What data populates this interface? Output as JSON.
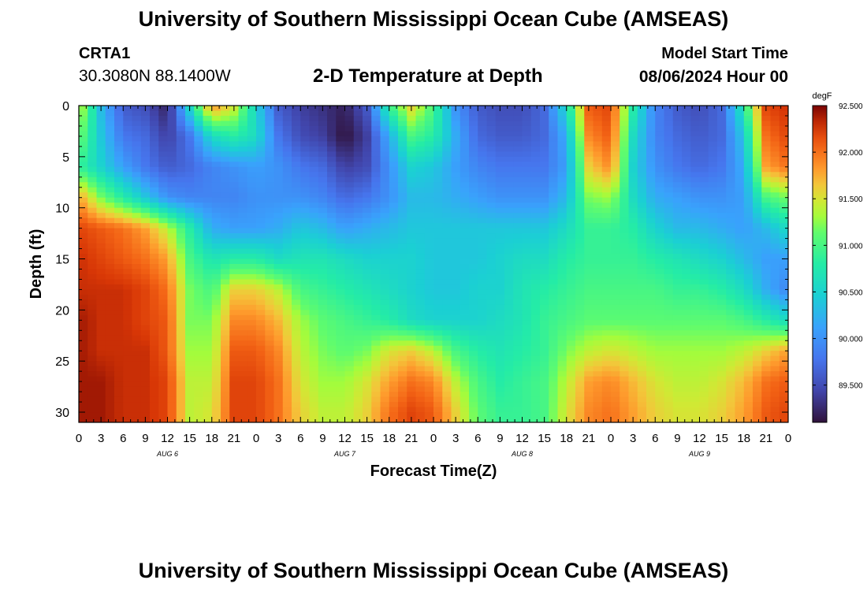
{
  "header": {
    "title": "University of Southern Mississippi Ocean Cube (AMSEAS)",
    "station": "CRTA1",
    "coordinates": "30.3080N  88.1400W",
    "subtitle": "2-D Temperature at Depth",
    "model_start_label": "Model Start Time",
    "model_start_value": "08/06/2024 Hour 00"
  },
  "footer": {
    "title": "University of Southern Mississippi Ocean Cube (AMSEAS)"
  },
  "chart_data": {
    "type": "heatmap",
    "title": "2-D Temperature at Depth",
    "xlabel": "Forecast Time(Z)",
    "ylabel": "Depth (ft)",
    "x_tick_labels": [
      "0",
      "3",
      "6",
      "9",
      "12",
      "15",
      "18",
      "21",
      "0",
      "3",
      "6",
      "9",
      "12",
      "15",
      "18",
      "21",
      "0",
      "3",
      "6",
      "9",
      "12",
      "15",
      "18",
      "21",
      "0",
      "3",
      "6",
      "9",
      "12",
      "15",
      "18",
      "21",
      "0"
    ],
    "x_range_hours": [
      0,
      96
    ],
    "date_labels": [
      {
        "label": "AUG 6",
        "hour": 12
      },
      {
        "label": "AUG 7",
        "hour": 36
      },
      {
        "label": "AUG 8",
        "hour": 60
      },
      {
        "label": "AUG 9",
        "hour": 84
      }
    ],
    "y_ticks": [
      0,
      5,
      10,
      15,
      20,
      25,
      30
    ],
    "ylim": [
      0,
      31
    ],
    "y_inverted": true,
    "colorbar": {
      "unit": "degF",
      "min": 89.1,
      "max": 92.5,
      "tick_labels": [
        "92.500",
        "92.000",
        "91.500",
        "91.000",
        "90.500",
        "90.000",
        "89.500"
      ],
      "tick_values": [
        92.5,
        92.0,
        91.5,
        91.0,
        90.5,
        90.0,
        89.5
      ]
    },
    "grid": false,
    "column_hours": [
      0,
      3,
      6,
      9,
      12,
      15,
      18,
      21,
      24,
      27,
      30,
      33,
      36,
      39,
      42,
      45,
      48,
      51,
      54,
      57,
      60,
      63,
      66,
      69,
      72,
      75,
      78,
      81,
      84,
      87,
      90,
      93,
      96
    ],
    "row_depths_ft": [
      0,
      3,
      6,
      9,
      12,
      15,
      18,
      21,
      24,
      27,
      30
    ],
    "values_degF": [
      [
        91.5,
        90.3,
        89.6,
        89.5,
        89.2,
        90.6,
        91.9,
        91.5,
        90.5,
        89.6,
        89.4,
        89.3,
        89.2,
        89.6,
        90.9,
        91.6,
        91.0,
        90.0,
        89.6,
        89.5,
        89.5,
        89.7,
        90.6,
        92.1,
        92.2,
        90.8,
        89.9,
        89.6,
        89.5,
        89.7,
        90.8,
        92.2,
        92.3
      ],
      [
        91.2,
        90.4,
        89.8,
        89.7,
        89.4,
        89.8,
        90.6,
        90.8,
        90.6,
        89.8,
        89.5,
        89.4,
        89.1,
        89.4,
        90.2,
        91.0,
        90.8,
        90.2,
        89.7,
        89.6,
        89.6,
        89.7,
        90.2,
        91.9,
        92.1,
        90.6,
        89.9,
        89.7,
        89.6,
        89.7,
        90.4,
        92.0,
        92.2
      ],
      [
        90.9,
        90.5,
        90.1,
        89.8,
        89.6,
        89.7,
        89.9,
        90.0,
        90.1,
        90.0,
        89.8,
        89.7,
        89.4,
        89.5,
        90.0,
        90.5,
        90.4,
        90.1,
        89.9,
        89.8,
        89.8,
        89.8,
        90.1,
        91.6,
        91.9,
        90.5,
        90.0,
        89.8,
        89.7,
        89.8,
        90.2,
        91.8,
        92.0
      ],
      [
        91.8,
        91.2,
        90.8,
        90.4,
        90.0,
        89.9,
        89.9,
        89.9,
        90.0,
        90.0,
        90.0,
        89.9,
        89.7,
        89.8,
        90.0,
        90.3,
        90.3,
        90.2,
        90.1,
        90.0,
        90.0,
        90.0,
        90.3,
        91.2,
        91.3,
        90.6,
        90.2,
        90.1,
        90.0,
        90.0,
        90.1,
        91.0,
        91.2
      ],
      [
        92.2,
        92.1,
        92.0,
        91.8,
        91.4,
        90.8,
        90.2,
        90.1,
        90.1,
        90.2,
        90.4,
        90.3,
        90.1,
        90.2,
        90.3,
        90.4,
        90.4,
        90.4,
        90.4,
        90.4,
        90.4,
        90.4,
        90.6,
        90.9,
        90.9,
        90.8,
        90.5,
        90.3,
        90.3,
        90.2,
        90.1,
        90.3,
        90.6
      ],
      [
        92.3,
        92.2,
        92.1,
        92.0,
        91.8,
        91.0,
        90.7,
        90.8,
        90.8,
        90.6,
        90.7,
        90.7,
        90.6,
        90.5,
        90.5,
        90.5,
        90.4,
        90.4,
        90.4,
        90.5,
        90.6,
        90.6,
        90.8,
        90.9,
        90.9,
        90.9,
        90.8,
        90.7,
        90.6,
        90.5,
        90.3,
        90.1,
        90.1
      ],
      [
        92.3,
        92.3,
        92.3,
        92.2,
        92.0,
        91.2,
        91.0,
        91.6,
        91.6,
        91.4,
        91.0,
        90.9,
        90.8,
        90.7,
        90.6,
        90.5,
        90.4,
        90.4,
        90.5,
        90.5,
        90.7,
        90.8,
        90.9,
        91.0,
        91.0,
        91.0,
        91.0,
        90.9,
        90.9,
        90.8,
        90.6,
        90.2,
        89.9
      ],
      [
        92.4,
        92.3,
        92.3,
        92.2,
        92.1,
        91.2,
        91.2,
        91.9,
        91.9,
        91.7,
        91.3,
        91.1,
        91.0,
        90.9,
        90.8,
        90.6,
        90.5,
        90.5,
        90.5,
        90.6,
        90.7,
        90.9,
        91.0,
        91.1,
        91.1,
        91.1,
        91.1,
        91.1,
        91.1,
        91.1,
        91.0,
        90.8,
        90.6
      ],
      [
        92.4,
        92.3,
        92.3,
        92.3,
        92.1,
        91.3,
        91.3,
        92.1,
        92.1,
        91.9,
        91.4,
        91.2,
        91.1,
        91.2,
        91.5,
        91.6,
        91.4,
        91.0,
        90.8,
        90.7,
        90.8,
        90.9,
        91.2,
        91.4,
        91.5,
        91.4,
        91.3,
        91.3,
        91.3,
        91.3,
        91.4,
        91.6,
        91.8
      ],
      [
        92.4,
        92.4,
        92.3,
        92.3,
        92.2,
        91.4,
        91.4,
        92.2,
        92.2,
        92.0,
        91.5,
        91.3,
        91.3,
        91.5,
        91.8,
        92.0,
        91.9,
        91.4,
        91.0,
        90.8,
        90.9,
        91.0,
        91.4,
        91.8,
        91.9,
        91.7,
        91.5,
        91.4,
        91.4,
        91.5,
        91.7,
        92.0,
        92.1
      ],
      [
        92.4,
        92.4,
        92.3,
        92.3,
        92.2,
        91.4,
        91.5,
        92.2,
        92.2,
        92.0,
        91.6,
        91.4,
        91.4,
        91.6,
        92.0,
        92.2,
        92.1,
        91.6,
        91.1,
        90.9,
        90.9,
        91.0,
        91.5,
        91.9,
        92.0,
        91.8,
        91.6,
        91.5,
        91.5,
        91.6,
        91.8,
        92.1,
        92.2
      ]
    ]
  }
}
